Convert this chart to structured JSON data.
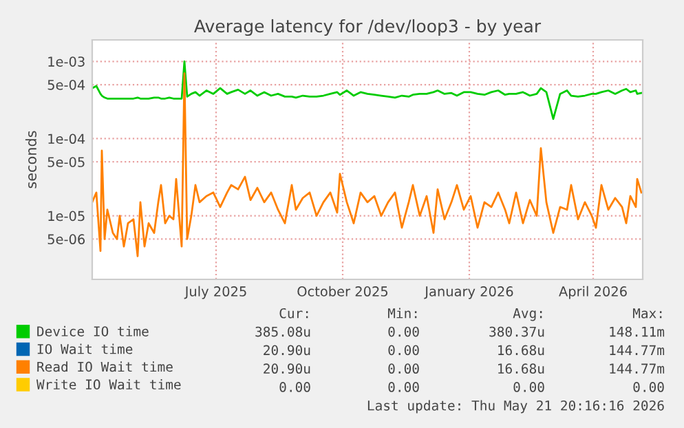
{
  "chart_data": {
    "type": "line",
    "title": "Average latency for /dev/loop3 - by year",
    "ylabel": "seconds",
    "log": "y",
    "grid": true,
    "legend": "bottom",
    "marker": "none",
    "line_style": "solid",
    "xlim": [
      "2025-04-16",
      "2026-05-21"
    ],
    "xticks": [
      {
        "value": "2025-07-15",
        "label": "July 2025"
      },
      {
        "value": "2025-10-15",
        "label": "October 2025"
      },
      {
        "value": "2026-01-15",
        "label": "January 2026"
      },
      {
        "value": "2026-04-15",
        "label": "April 2026"
      }
    ],
    "ylim": [
      1.5e-06,
      0.0019
    ],
    "yticks": [
      {
        "value": 5e-06,
        "label": "5e-06"
      },
      {
        "value": 1e-05,
        "label": "1e-05"
      },
      {
        "value": 5e-05,
        "label": "5e-05"
      },
      {
        "value": 0.0001,
        "label": "1e-04"
      },
      {
        "value": 0.0005,
        "label": "5e-04"
      },
      {
        "value": 0.001,
        "label": "1e-03"
      }
    ],
    "x": [
      "2025-04-16",
      "2025-04-19",
      "2025-04-22",
      "2025-04-23",
      "2025-04-25",
      "2025-04-27",
      "2025-05-01",
      "2025-05-04",
      "2025-05-06",
      "2025-05-09",
      "2025-05-12",
      "2025-05-16",
      "2025-05-19",
      "2025-05-21",
      "2025-05-24",
      "2025-05-27",
      "2025-05-31",
      "2025-06-03",
      "2025-06-05",
      "2025-06-08",
      "2025-06-11",
      "2025-06-14",
      "2025-06-16",
      "2025-06-20",
      "2025-06-22",
      "2025-06-24",
      "2025-06-27",
      "2025-06-30",
      "2025-07-03",
      "2025-07-08",
      "2025-07-13",
      "2025-07-18",
      "2025-07-23",
      "2025-07-26",
      "2025-07-31",
      "2025-08-05",
      "2025-08-09",
      "2025-08-14",
      "2025-08-19",
      "2025-08-24",
      "2025-08-29",
      "2025-09-03",
      "2025-09-08",
      "2025-09-11",
      "2025-09-16",
      "2025-09-21",
      "2025-09-26",
      "2025-10-01",
      "2025-10-06",
      "2025-10-11",
      "2025-10-13",
      "2025-10-18",
      "2025-10-23",
      "2025-10-28",
      "2025-11-02",
      "2025-11-07",
      "2025-11-12",
      "2025-11-17",
      "2025-11-22",
      "2025-11-27",
      "2025-12-02",
      "2025-12-05",
      "2025-12-10",
      "2025-12-15",
      "2025-12-20",
      "2025-12-23",
      "2025-12-28",
      "2026-01-02",
      "2026-01-06",
      "2026-01-11",
      "2026-01-16",
      "2026-01-21",
      "2026-01-26",
      "2026-01-31",
      "2026-02-05",
      "2026-02-10",
      "2026-02-13",
      "2026-02-18",
      "2026-02-23",
      "2026-02-28",
      "2026-03-05",
      "2026-03-08",
      "2026-03-12",
      "2026-03-17",
      "2026-03-22",
      "2026-03-27",
      "2026-03-30",
      "2026-04-04",
      "2026-04-09",
      "2026-04-14",
      "2026-04-17",
      "2026-04-21",
      "2026-04-26",
      "2026-05-01",
      "2026-05-06",
      "2026-05-09",
      "2026-05-12",
      "2026-05-16",
      "2026-05-17",
      "2026-05-20"
    ],
    "series": [
      {
        "name": "Device IO time",
        "color": "#00cc00",
        "values": [
          0.00045,
          0.00048,
          0.00038,
          0.00036,
          0.00034,
          0.00033,
          0.00033,
          0.00033,
          0.00033,
          0.00033,
          0.00033,
          0.00033,
          0.00034,
          0.00033,
          0.00033,
          0.00033,
          0.00034,
          0.00034,
          0.00033,
          0.00033,
          0.00034,
          0.00033,
          0.00033,
          0.00033,
          0.001,
          0.00035,
          0.00038,
          0.0004,
          0.00036,
          0.00042,
          0.00038,
          0.00045,
          0.00038,
          0.0004,
          0.00043,
          0.00038,
          0.00042,
          0.00036,
          0.0004,
          0.00036,
          0.00038,
          0.00035,
          0.00035,
          0.00034,
          0.00036,
          0.00035,
          0.00035,
          0.00036,
          0.00038,
          0.0004,
          0.00037,
          0.00042,
          0.00036,
          0.0004,
          0.00038,
          0.00037,
          0.00036,
          0.00035,
          0.00034,
          0.00036,
          0.00035,
          0.00037,
          0.00038,
          0.00038,
          0.0004,
          0.00042,
          0.00038,
          0.00039,
          0.00036,
          0.0004,
          0.0004,
          0.00038,
          0.00037,
          0.0004,
          0.00042,
          0.00037,
          0.00038,
          0.00038,
          0.0004,
          0.00036,
          0.00038,
          0.00045,
          0.0004,
          0.00018,
          0.00038,
          0.00042,
          0.00036,
          0.00035,
          0.00036,
          0.00038,
          0.00038,
          0.0004,
          0.00042,
          0.00038,
          0.00042,
          0.00044,
          0.0004,
          0.00042,
          0.00038,
          0.00039
        ]
      },
      {
        "name": "IO Wait time",
        "color": "#0066b3",
        "values": [
          null,
          null,
          null,
          null,
          null,
          null,
          null,
          null,
          null,
          null,
          null,
          null,
          null,
          null,
          null,
          null,
          null,
          null,
          null,
          null,
          null,
          null,
          null,
          null,
          null,
          null,
          null,
          null,
          null,
          null,
          null,
          null,
          null,
          null,
          null,
          null,
          null,
          null,
          null,
          null,
          null,
          null,
          null,
          null,
          null,
          null,
          null,
          null,
          null,
          null,
          null,
          null,
          null,
          null,
          null,
          null,
          null,
          null,
          null,
          null,
          null,
          null,
          null,
          null,
          null,
          null,
          null,
          null,
          null,
          null,
          null,
          null,
          null,
          null,
          null,
          null,
          null,
          null,
          null,
          null,
          null,
          null,
          null,
          null,
          null,
          null,
          null,
          null,
          null,
          null,
          null,
          null,
          null,
          null,
          null,
          null,
          null,
          null,
          null,
          null
        ]
      },
      {
        "name": "Read IO Wait time",
        "color": "#ff8000",
        "values": [
          1.5e-05,
          2e-05,
          3.5e-06,
          7e-05,
          5e-06,
          1.2e-05,
          6e-06,
          5e-06,
          1e-05,
          4e-06,
          8e-06,
          9e-06,
          3e-06,
          1.5e-05,
          4e-06,
          8e-06,
          6e-06,
          1.5e-05,
          2.5e-05,
          8e-06,
          1e-05,
          9e-06,
          3e-05,
          4e-06,
          0.0007,
          5e-06,
          1e-05,
          2.5e-05,
          1.5e-05,
          1.8e-05,
          2e-05,
          1.3e-05,
          2e-05,
          2.5e-05,
          2.2e-05,
          3.2e-05,
          1.6e-05,
          2.3e-05,
          1.5e-05,
          2e-05,
          1.2e-05,
          8e-06,
          2.5e-05,
          1.2e-05,
          1.7e-05,
          2e-05,
          1e-05,
          1.5e-05,
          2e-05,
          1.1e-05,
          3.5e-05,
          1.5e-05,
          8e-06,
          2e-05,
          1.5e-05,
          1.8e-05,
          1e-05,
          1.5e-05,
          2e-05,
          7e-06,
          1.5e-05,
          2.5e-05,
          1e-05,
          1.8e-05,
          6e-06,
          2.2e-05,
          9e-06,
          1.5e-05,
          2.5e-05,
          1.2e-05,
          1.8e-05,
          7e-06,
          1.5e-05,
          1.3e-05,
          2e-05,
          1.2e-05,
          8e-06,
          2e-05,
          8e-06,
          1.6e-05,
          1e-05,
          7.5e-05,
          1.5e-05,
          6e-06,
          1.3e-05,
          1.2e-05,
          2.5e-05,
          9e-06,
          1.5e-05,
          1e-05,
          7e-06,
          2.5e-05,
          1.2e-05,
          1.7e-05,
          1.3e-05,
          8e-06,
          1.8e-05,
          1.3e-05,
          3e-05,
          2e-05
        ]
      },
      {
        "name": "Write IO Wait time",
        "color": "#ffcc00",
        "values": [
          null,
          null,
          null,
          null,
          null,
          null,
          null,
          null,
          null,
          null,
          null,
          null,
          null,
          null,
          null,
          null,
          null,
          null,
          null,
          null,
          null,
          null,
          null,
          null,
          null,
          null,
          null,
          null,
          null,
          null,
          null,
          null,
          null,
          null,
          null,
          null,
          null,
          null,
          null,
          null,
          null,
          null,
          null,
          null,
          null,
          null,
          null,
          null,
          null,
          null,
          null,
          null,
          null,
          null,
          null,
          null,
          null,
          null,
          null,
          null,
          null,
          null,
          null,
          null,
          null,
          null,
          null,
          null,
          null,
          null,
          null,
          null,
          null,
          null,
          null,
          null,
          null,
          null,
          null,
          null,
          null,
          null,
          null,
          null,
          null,
          null,
          null,
          null,
          null,
          null,
          null,
          null,
          null,
          null,
          null,
          null,
          null,
          null,
          null,
          null
        ]
      }
    ],
    "annotations": [
      "Cur:",
      "Min:",
      "Avg:",
      "Max:",
      "385.08u",
      "0.00",
      "380.37u",
      "148.11m",
      "20.90u",
      "0.00",
      "16.68u",
      "144.77m",
      "20.90u",
      "0.00",
      "16.68u",
      "144.77m",
      "0.00",
      "0.00",
      "0.00",
      "0.00",
      "Last update: Thu May 21 20:16:16 2026"
    ]
  }
}
